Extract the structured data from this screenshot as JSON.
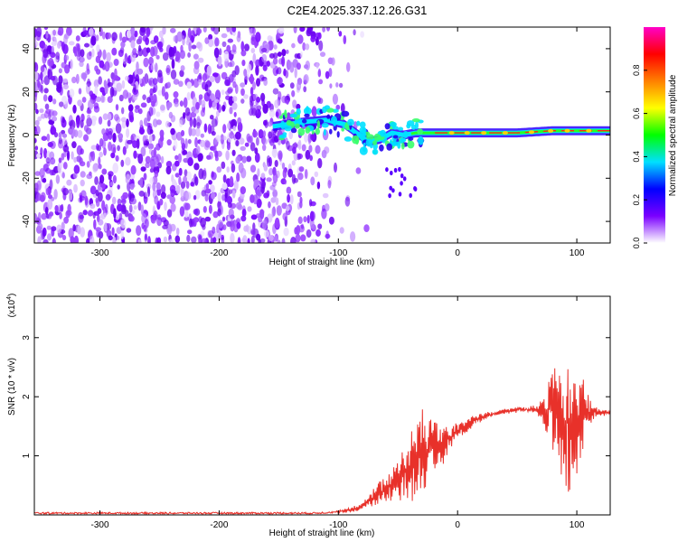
{
  "figure_title": "C2E4.2025.337.12.26.G31",
  "chart_data": [
    {
      "type": "heatmap",
      "name": "spectrogram",
      "xlabel": "Height of straight line (km)",
      "ylabel": "Frequency (Hz)",
      "xlim": [
        -355,
        128
      ],
      "ylim": [
        -50,
        50
      ],
      "x_ticks": [
        -300,
        -200,
        -100,
        0,
        100
      ],
      "x_tick_labels": [
        "-300",
        "-200",
        "-100",
        "0",
        "100"
      ],
      "y_ticks": [
        -40,
        -20,
        0,
        20,
        40
      ],
      "y_tick_labels": [
        "-40",
        "-20",
        "0",
        "20",
        "40"
      ],
      "noise_region_x": [
        -355,
        -100
      ],
      "signal_track": {
        "x": [
          -155,
          -130,
          -110,
          -95,
          -85,
          -75,
          -65,
          -55,
          -45,
          -35,
          -20,
          0,
          20,
          50,
          80,
          100,
          128
        ],
        "freq": [
          4,
          6,
          7,
          5,
          1,
          -3,
          -2,
          1,
          0,
          1,
          1,
          1,
          1,
          1,
          2,
          2,
          2
        ]
      },
      "colorbar": {
        "label": "Normalized spectral amplitude",
        "range": [
          0,
          1
        ],
        "ticks": [
          0.0,
          0.2,
          0.4,
          0.6,
          0.8
        ],
        "tick_labels": [
          "0.0",
          "0.2",
          "0.4",
          "0.6",
          "0.8"
        ],
        "colors": [
          "#ffffff",
          "#7a00ff",
          "#0000ff",
          "#00e0ff",
          "#00ff00",
          "#ffff00",
          "#ff8000",
          "#ff0000",
          "#ff00c8"
        ]
      }
    },
    {
      "type": "line",
      "name": "snr",
      "xlabel": "Height of straight line (km)",
      "ylabel": "SNR (10 * v/v)",
      "y_multiplier_label": "(x10",
      "y_multiplier_exp": "4",
      "xlim": [
        -355,
        128
      ],
      "ylim": [
        0,
        3.7
      ],
      "x_ticks": [
        -300,
        -200,
        -100,
        0,
        100
      ],
      "x_tick_labels": [
        "-300",
        "-200",
        "-100",
        "0",
        "100"
      ],
      "y_ticks": [
        1,
        2,
        3
      ],
      "y_tick_labels": [
        "1",
        "2",
        "3"
      ],
      "color": "#e8312a",
      "series": [
        {
          "name": "SNR",
          "x": [
            -355,
            -300,
            -200,
            -120,
            -100,
            -90,
            -80,
            -70,
            -60,
            -50,
            -40,
            -30,
            -20,
            -10,
            0,
            10,
            20,
            30,
            40,
            50,
            60,
            70,
            75,
            80,
            85,
            90,
            95,
            100,
            105,
            110,
            115,
            120,
            128
          ],
          "y": [
            0.03,
            0.03,
            0.03,
            0.03,
            0.05,
            0.08,
            0.15,
            0.3,
            0.45,
            0.6,
            0.8,
            1.0,
            1.15,
            1.25,
            1.4,
            1.55,
            1.65,
            1.72,
            1.75,
            1.78,
            1.78,
            1.78,
            1.78,
            1.8,
            1.75,
            1.5,
            1.7,
            1.65,
            1.7,
            1.72,
            1.74,
            1.73,
            1.72
          ]
        }
      ],
      "noise_amplitude": {
        "x": [
          -110,
          -80,
          -60,
          -40,
          -25,
          -10,
          0,
          20,
          40,
          60,
          70,
          80,
          90,
          100,
          108,
          115,
          128
        ],
        "amp": [
          0.0,
          0.05,
          0.25,
          0.6,
          0.9,
          0.3,
          0.15,
          0.06,
          0.04,
          0.04,
          0.15,
          0.7,
          1.6,
          1.0,
          0.4,
          0.08,
          0.04
        ]
      }
    }
  ]
}
